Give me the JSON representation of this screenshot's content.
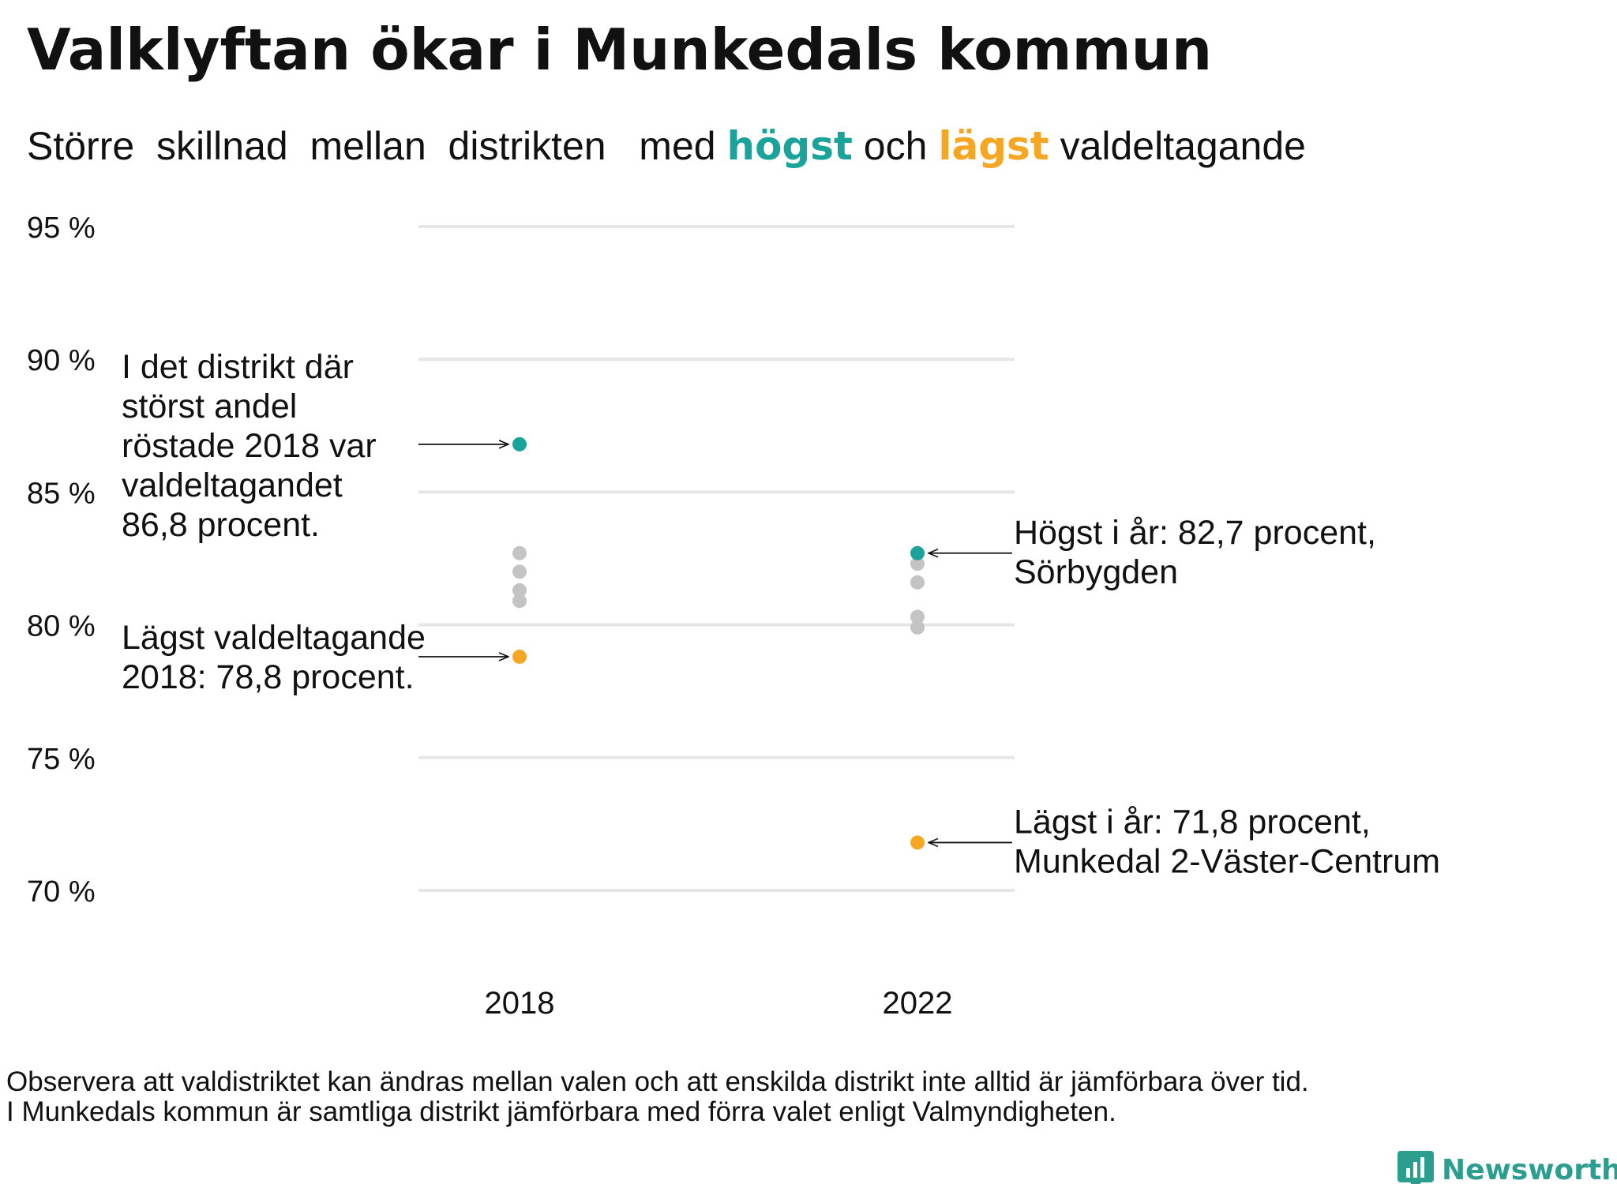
{
  "title": "Valklyftan ökar i Munkedals kommun",
  "subtitle": {
    "part1": "Större  skillnad  mellan  distrikten   med",
    "highest_word": "högst",
    "part2": "och",
    "lowest_word": "lägst",
    "part3": "valdeltagande"
  },
  "colors": {
    "highest": "#1aa39a",
    "lowest": "#f5a623",
    "other": "#c4c4c4",
    "grid": "#e6e6e6",
    "text": "#111111",
    "brand": "#2b9e8f"
  },
  "chart_data": {
    "type": "scatter",
    "x_categories": [
      "2018",
      "2022"
    ],
    "y_ticks": [
      {
        "value": 95,
        "label": "95 %"
      },
      {
        "value": 90,
        "label": "90 %"
      },
      {
        "value": 85,
        "label": "85 %"
      },
      {
        "value": 80,
        "label": "80 %"
      },
      {
        "value": 75,
        "label": "75 %"
      },
      {
        "value": 70,
        "label": "70 %"
      }
    ],
    "ylim": [
      70,
      95
    ],
    "grid": true,
    "series": [
      {
        "name": "högst",
        "color_key": "highest",
        "points": [
          {
            "x": "2018",
            "y": 86.8
          },
          {
            "x": "2022",
            "y": 82.7
          }
        ]
      },
      {
        "name": "lägst",
        "color_key": "lowest",
        "points": [
          {
            "x": "2018",
            "y": 78.8
          },
          {
            "x": "2022",
            "y": 71.8
          }
        ]
      },
      {
        "name": "",
        "color_key": "other",
        "points": [
          {
            "x": "2018",
            "y": 82.7
          },
          {
            "x": "2018",
            "y": 82.0
          },
          {
            "x": "2018",
            "y": 81.3
          },
          {
            "x": "2018",
            "y": 80.9
          },
          {
            "x": "2022",
            "y": 82.3
          },
          {
            "x": "2022",
            "y": 81.6
          },
          {
            "x": "2022",
            "y": 80.3
          },
          {
            "x": "2022",
            "y": 79.9
          }
        ]
      }
    ],
    "annotations": [
      {
        "target": {
          "x": "2018",
          "y": 86.8
        },
        "side": "left",
        "lines": [
          "I det distrikt där",
          "störst andel",
          "röstade 2018 var",
          "valdeltagandet",
          "86,8 procent."
        ]
      },
      {
        "target": {
          "x": "2018",
          "y": 78.8
        },
        "side": "left",
        "lines": [
          "Lägst valdeltagande",
          "2018: 78,8 procent."
        ]
      },
      {
        "target": {
          "x": "2022",
          "y": 82.7
        },
        "side": "right",
        "lines": [
          "Högst i år: 82,7 procent,",
          "Sörbygden"
        ]
      },
      {
        "target": {
          "x": "2022",
          "y": 71.8
        },
        "side": "right",
        "lines": [
          "Lägst i år: 71,8 procent,",
          "Munkedal 2-Väster-Centrum"
        ]
      }
    ]
  },
  "footnote": [
    "Observera att valdistriktet kan ändras mellan valen och att enskilda distrikt inte alltid är jämförbara över tid.",
    "I Munkedals kommun är samtliga distrikt jämförbara med förra valet enligt Valmyndigheten."
  ],
  "brand": {
    "name": "Newsworthy",
    "icon": "bar-chart-speech-bubble-icon"
  }
}
